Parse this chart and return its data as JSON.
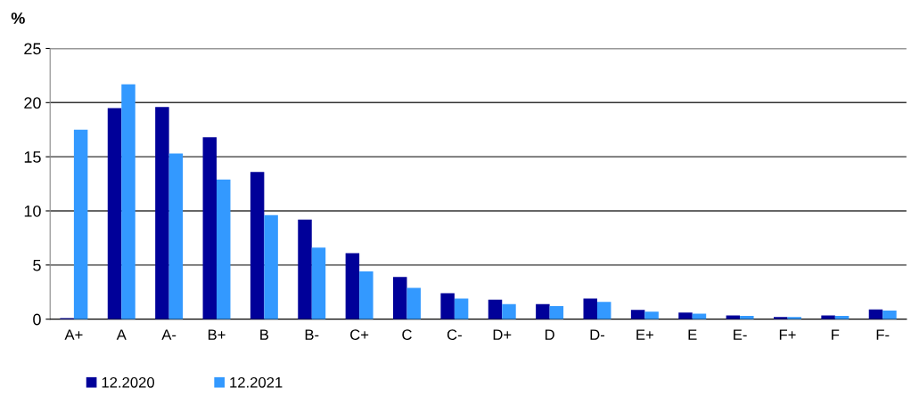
{
  "chart_data": {
    "type": "bar",
    "ylabel": "%",
    "categories": [
      "A+",
      "A",
      "A-",
      "B+",
      "B",
      "B-",
      "C+",
      "C",
      "C-",
      "D+",
      "D",
      "D-",
      "E+",
      "E",
      "E-",
      "F+",
      "F",
      "F-"
    ],
    "series": [
      {
        "name": "12.2020",
        "color": "#000099",
        "values": [
          0.1,
          19.5,
          19.6,
          16.8,
          13.6,
          9.2,
          6.1,
          3.9,
          2.4,
          1.8,
          1.4,
          1.9,
          0.85,
          0.6,
          0.35,
          0.2,
          0.35,
          0.9
        ]
      },
      {
        "name": "12.2021",
        "color": "#3399ff",
        "values": [
          17.5,
          21.7,
          15.3,
          12.9,
          9.6,
          6.6,
          4.4,
          2.9,
          1.9,
          1.4,
          1.2,
          1.6,
          0.7,
          0.5,
          0.3,
          0.2,
          0.3,
          0.8
        ]
      }
    ],
    "ylim": [
      0,
      25
    ],
    "yticks": [
      0,
      5,
      10,
      15,
      20,
      25
    ],
    "grid": "y",
    "legend": "bottom left"
  }
}
